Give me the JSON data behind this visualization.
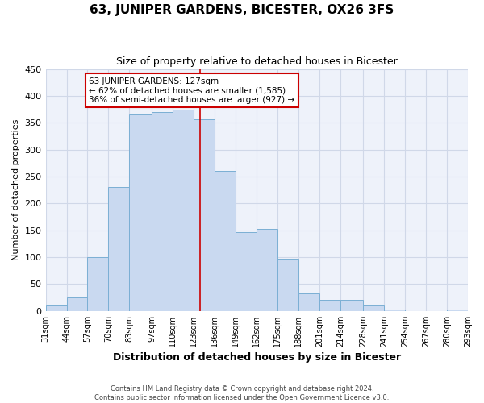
{
  "title": "63, JUNIPER GARDENS, BICESTER, OX26 3FS",
  "subtitle": "Size of property relative to detached houses in Bicester",
  "xlabel": "Distribution of detached houses by size in Bicester",
  "ylabel": "Number of detached properties",
  "bin_labels": [
    "31sqm",
    "44sqm",
    "57sqm",
    "70sqm",
    "83sqm",
    "97sqm",
    "110sqm",
    "123sqm",
    "136sqm",
    "149sqm",
    "162sqm",
    "175sqm",
    "188sqm",
    "201sqm",
    "214sqm",
    "228sqm",
    "241sqm",
    "254sqm",
    "267sqm",
    "280sqm",
    "293sqm"
  ],
  "bar_heights": [
    10,
    25,
    100,
    230,
    365,
    370,
    375,
    357,
    260,
    146,
    153,
    97,
    33,
    21,
    21,
    10,
    3,
    0,
    0,
    3
  ],
  "bin_edges": [
    31,
    44,
    57,
    70,
    83,
    97,
    110,
    123,
    136,
    149,
    162,
    175,
    188,
    201,
    214,
    228,
    241,
    254,
    267,
    280,
    293
  ],
  "bar_color": "#c9d9f0",
  "bar_edge_color": "#7bafd4",
  "property_size": 127,
  "vline_color": "#cc0000",
  "annotation_line1": "63 JUNIPER GARDENS: 127sqm",
  "annotation_line2": "← 62% of detached houses are smaller (1,585)",
  "annotation_line3": "36% of semi-detached houses are larger (927) →",
  "annotation_box_color": "#ffffff",
  "annotation_box_edge_color": "#cc0000",
  "ylim": [
    0,
    450
  ],
  "yticks": [
    0,
    50,
    100,
    150,
    200,
    250,
    300,
    350,
    400,
    450
  ],
  "footer_line1": "Contains HM Land Registry data © Crown copyright and database right 2024.",
  "footer_line2": "Contains public sector information licensed under the Open Government Licence v3.0.",
  "grid_color": "#d0d8e8",
  "plot_bg_color": "#eef2fa",
  "fig_bg_color": "#ffffff"
}
